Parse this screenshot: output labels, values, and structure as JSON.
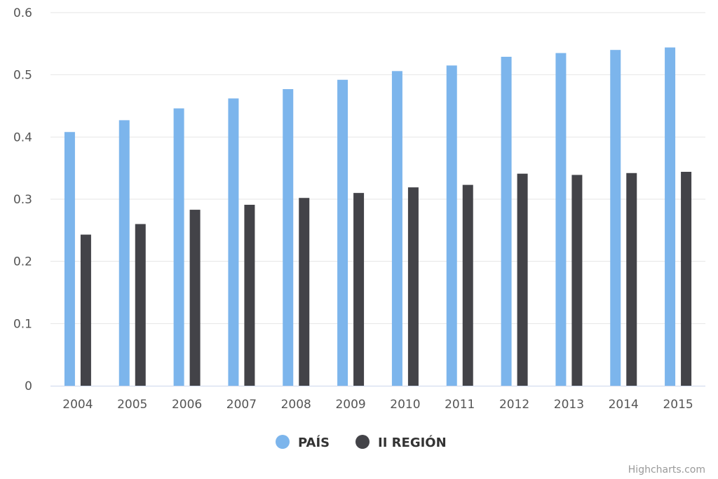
{
  "chart_data": {
    "type": "bar",
    "categories": [
      "2004",
      "2005",
      "2006",
      "2007",
      "2008",
      "2009",
      "2010",
      "2011",
      "2012",
      "2013",
      "2014",
      "2015"
    ],
    "series": [
      {
        "name": "PAÍS",
        "color": "#7cb5ec",
        "values": [
          0.408,
          0.427,
          0.446,
          0.462,
          0.477,
          0.492,
          0.506,
          0.515,
          0.529,
          0.535,
          0.54,
          0.544
        ]
      },
      {
        "name": "II REGIÓN",
        "color": "#434348",
        "values": [
          0.243,
          0.26,
          0.283,
          0.291,
          0.302,
          0.31,
          0.319,
          0.323,
          0.341,
          0.339,
          0.342,
          0.344
        ]
      }
    ],
    "yticks": [
      "0",
      "0.1",
      "0.2",
      "0.3",
      "0.4",
      "0.5",
      "0.6"
    ],
    "ylim": [
      0,
      0.6
    ],
    "grid": true,
    "legend_position": "bottom-center"
  },
  "credits": "Highcharts.com"
}
